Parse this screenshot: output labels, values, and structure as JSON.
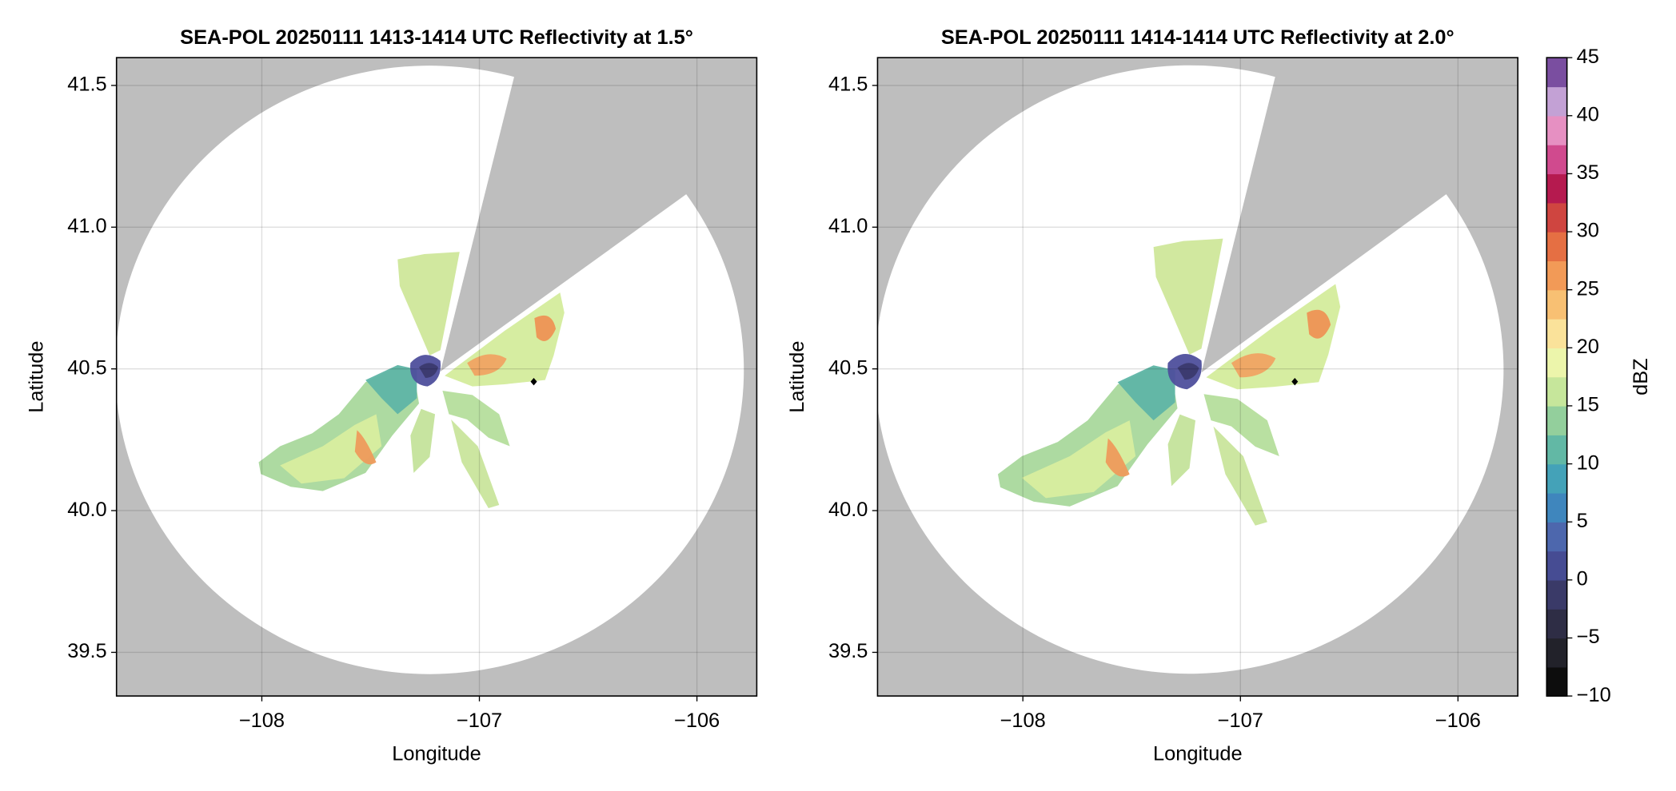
{
  "chart_data": [
    {
      "type": "radar",
      "title": "SEA-POL 20250111 1413-1414 UTC Reflectivity at 1.5°",
      "xlabel": "Longitude",
      "ylabel": "Latitude",
      "xlim": [
        -108.668,
        -105.725
      ],
      "ylim": [
        39.346,
        41.598
      ],
      "xticks": [
        {
          "value": -108,
          "label": "−108"
        },
        {
          "value": -107,
          "label": "−107"
        },
        {
          "value": -106,
          "label": "−106"
        }
      ],
      "yticks": [
        39.5,
        {
          "value": 40,
          "label": "40.0"
        },
        40.5,
        {
          "value": 41,
          "label": "41.0"
        },
        41.5
      ],
      "grid": true,
      "mask_color": "#bebebe",
      "marker": {
        "x": -106.75,
        "y": 40.455
      }
    },
    {
      "type": "radar",
      "title": "SEA-POL 20250111 1414-1414 UTC Reflectivity at 2.0°",
      "xlabel": "Longitude",
      "ylabel": "Latitude",
      "xlim": [
        -108.668,
        -105.725
      ],
      "ylim": [
        39.346,
        41.598
      ],
      "xticks": [
        {
          "value": -108,
          "label": "−108"
        },
        {
          "value": -107,
          "label": "−107"
        },
        {
          "value": -106,
          "label": "−106"
        }
      ],
      "yticks": [
        39.5,
        {
          "value": 40,
          "label": "40.0"
        },
        40.5,
        {
          "value": 41,
          "label": "41.0"
        },
        41.5
      ],
      "grid": true,
      "mask_color": "#bebebe",
      "marker": {
        "x": -106.75,
        "y": 40.455
      }
    },
    {
      "type": "colorbar",
      "label": "dBZ",
      "lim": [
        -10,
        45
      ],
      "ticks": [
        {
          "value": -10,
          "label": "−10"
        },
        {
          "value": -5,
          "label": "−5"
        },
        0,
        5,
        10,
        15,
        20,
        25,
        30,
        35,
        40,
        45
      ],
      "colors": [
        "#0d0d0d",
        "#22222a",
        "#2e2d45",
        "#3a3a68",
        "#464c93",
        "#4d67ad",
        "#3f86bd",
        "#44a2b8",
        "#62b8a5",
        "#93cf9c",
        "#c6e69b",
        "#ecf5ab",
        "#fae29a",
        "#f8c073",
        "#f29a57",
        "#e56f43",
        "#cf4540",
        "#b51a4f",
        "#d04a8e",
        "#e690c2",
        "#c3a1d5",
        "#7a4ea0"
      ]
    }
  ]
}
